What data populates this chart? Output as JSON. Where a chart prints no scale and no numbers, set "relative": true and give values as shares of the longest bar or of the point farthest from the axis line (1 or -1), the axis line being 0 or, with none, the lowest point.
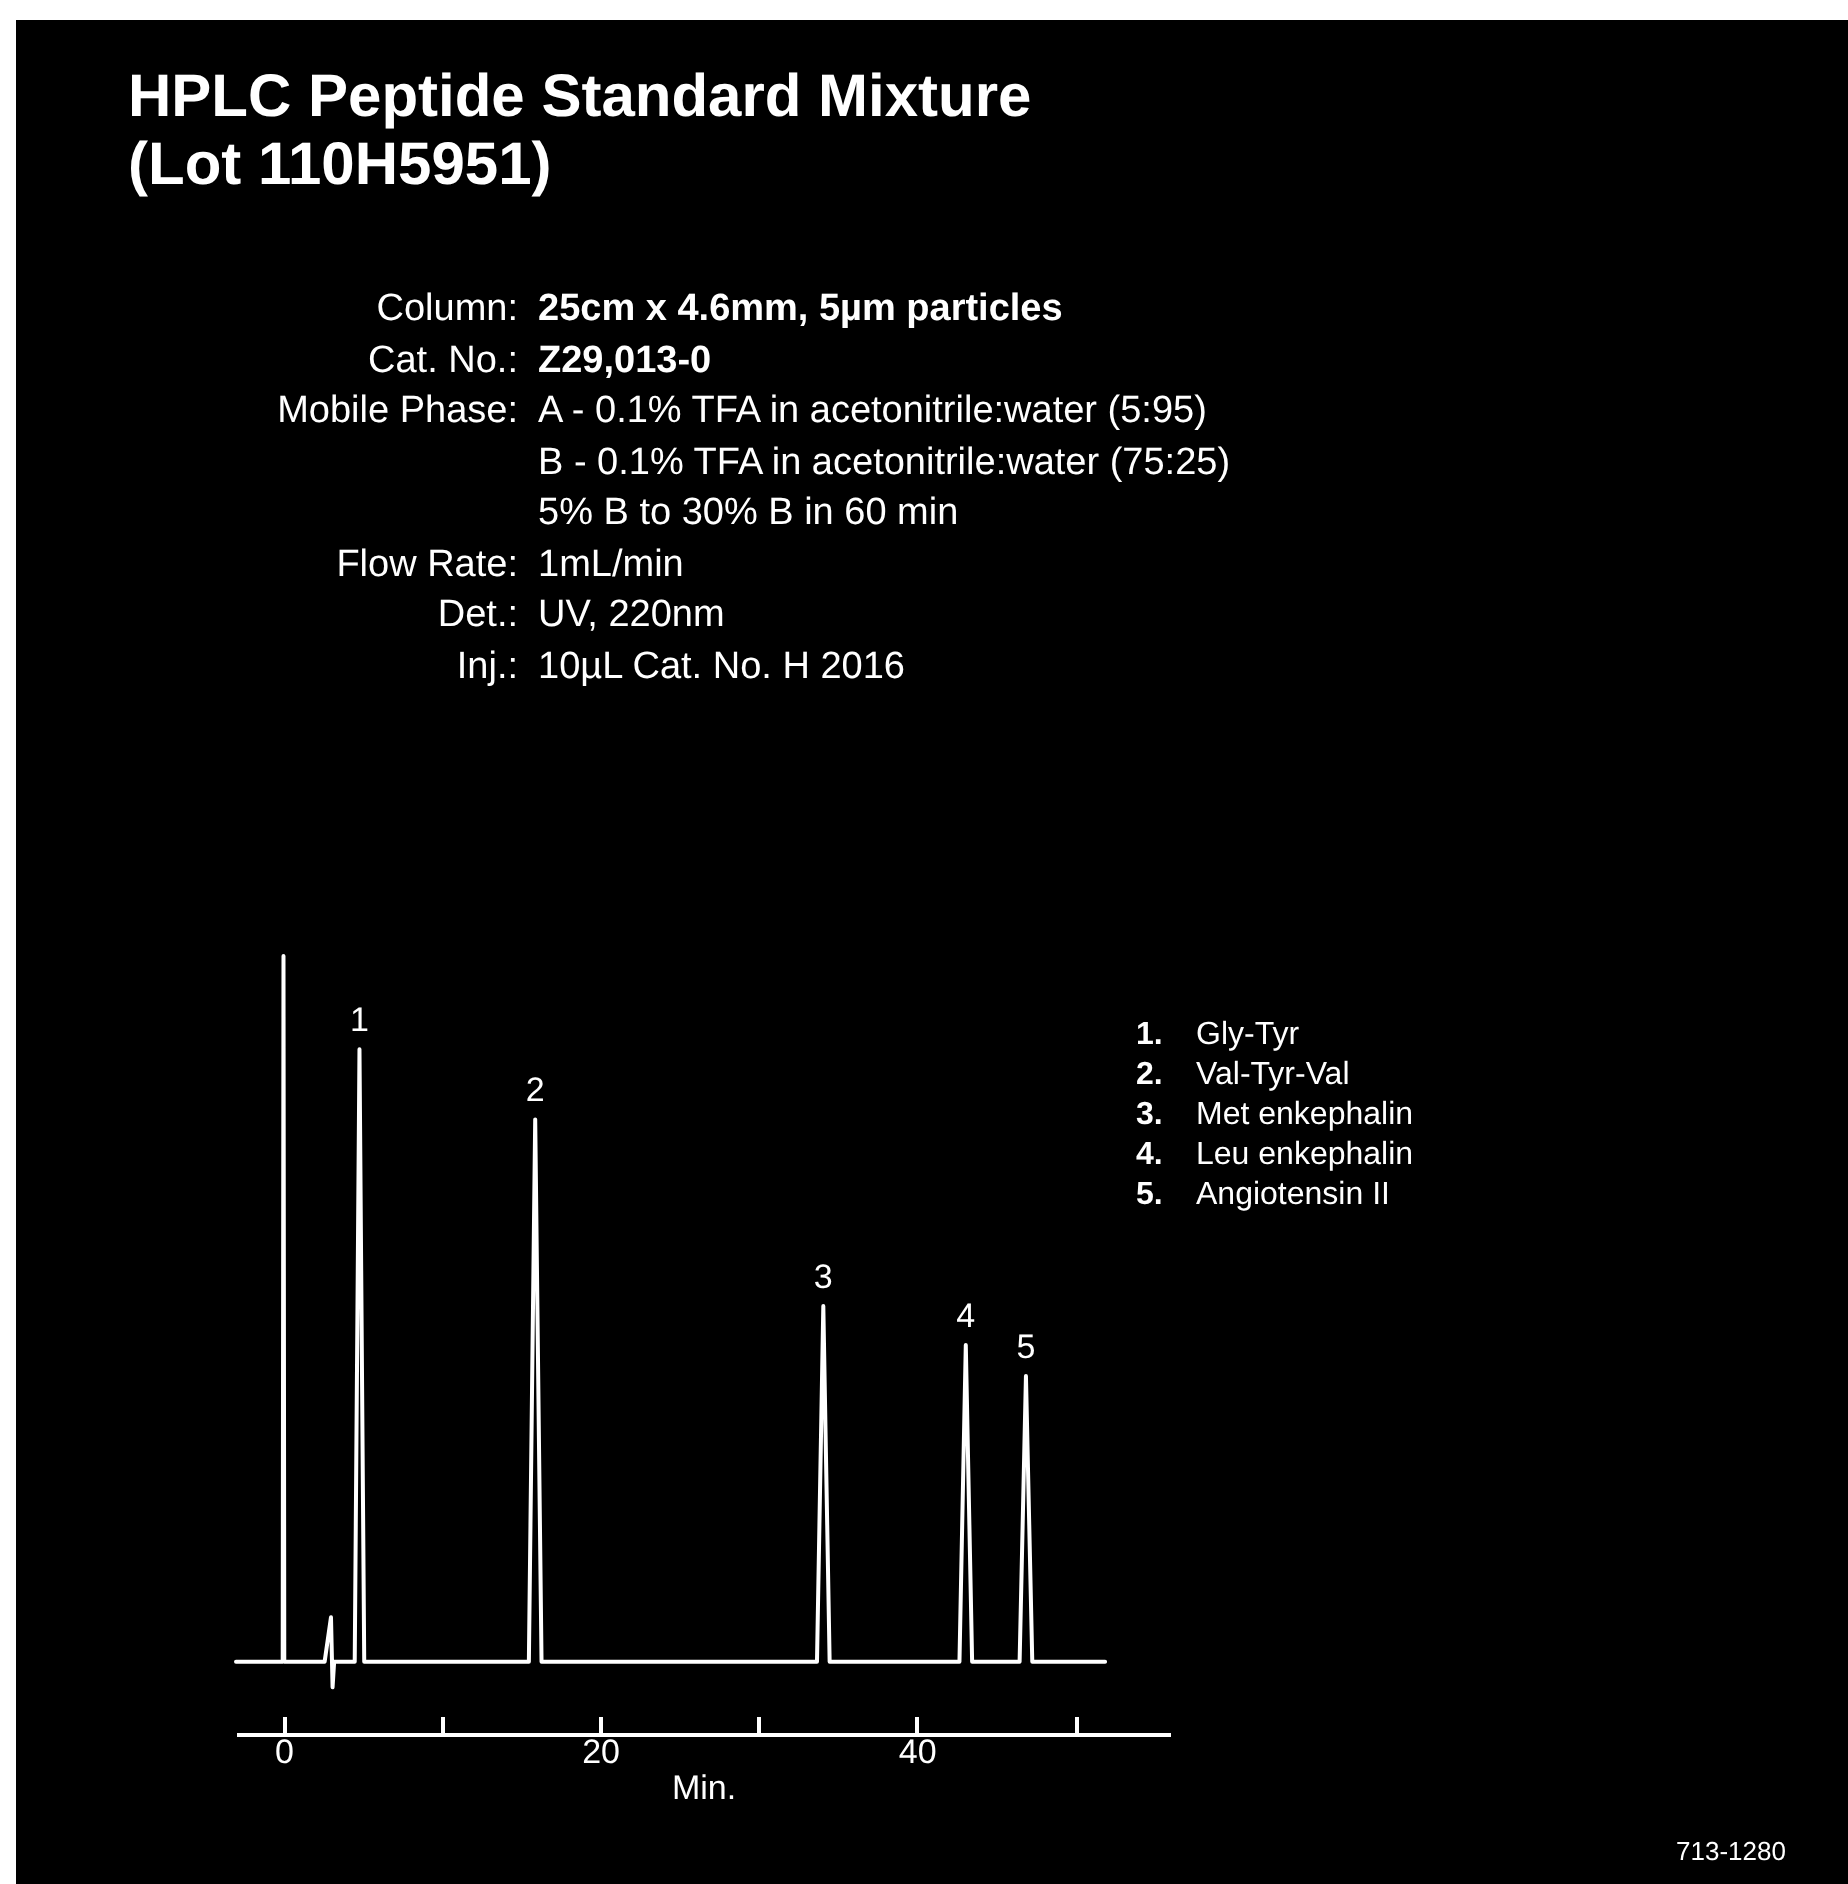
{
  "chart_data": {
    "type": "line",
    "title": "HPLC Peptide Standard Mixture\n(Lot 110H5951)",
    "xlabel": "Min.",
    "relative": true,
    "xlim": [
      -3,
      56
    ],
    "xticks": [
      0,
      {
        "value": 10,
        "label": null
      },
      20,
      {
        "value": 30,
        "label": null
      },
      40,
      {
        "value": 50,
        "label": null
      }
    ],
    "tick_labels": "x",
    "grid": false,
    "legend": false,
    "marker": "none",
    "line_style": "solid",
    "series": [
      {
        "color": "#ffffff",
        "x": [
          -3,
          -0.05,
          0,
          0.05,
          2.6,
          3.0,
          3.1,
          3.2,
          3.5,
          4.5,
          4.8,
          5.1,
          15.5,
          15.9,
          16.3,
          33.7,
          34.1,
          34.5,
          42.7,
          43.1,
          43.5,
          46.5,
          46.9,
          47.3,
          51.9
        ],
        "values": [
          0.093,
          0.093,
          1,
          0.093,
          0.093,
          0.15,
          0.06,
          0.093,
          0.093,
          0.093,
          0.88,
          0.093,
          0.093,
          0.79,
          0.093,
          0.093,
          0.55,
          0.093,
          0.093,
          0.5,
          0.093,
          0.093,
          0.46,
          0.093,
          0.093
        ]
      }
    ],
    "annotations": [
      "Column: 25cm x 4.6mm, 5µm particles",
      "Cat. No.: Z29,013-0",
      "Mobile Phase: A - 0.1% TFA in acetonitrile:water (5:95)",
      "B - 0.1% TFA in acetonitrile:water (75:25)",
      "5% B to 30% B in 60 min",
      "Flow Rate: 1mL/min",
      "Det.: UV, 220nm",
      "Inj.: 10µL Cat. No. H 2016",
      {
        "text": "1",
        "x": 4.8,
        "y": 0.88
      },
      {
        "text": "2",
        "x": 15.9,
        "y": 0.79
      },
      {
        "text": "3",
        "x": 34.1,
        "y": 0.55
      },
      {
        "text": "4",
        "x": 43.1,
        "y": 0.5
      },
      {
        "text": "5",
        "x": 46.9,
        "y": 0.46
      },
      "1. Gly-Tyr",
      "2. Val-Tyr-Val",
      "3. Met enkephalin",
      "4. Leu enkephalin",
      "5. Angiotensin II",
      "713-1280"
    ]
  }
}
